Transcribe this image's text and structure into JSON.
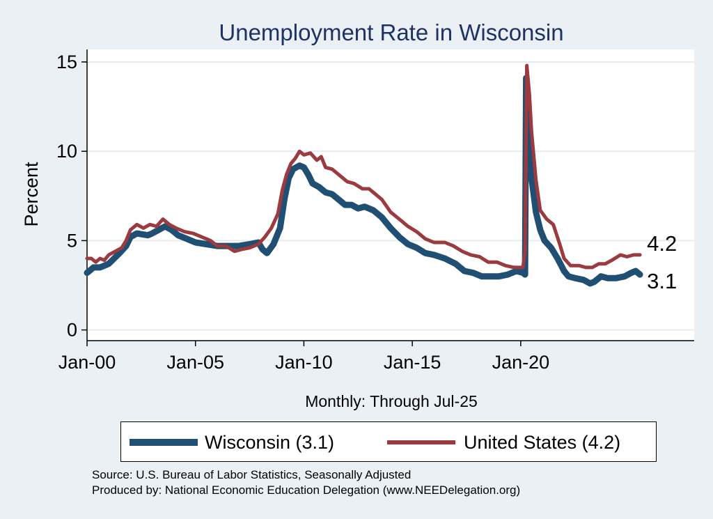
{
  "chart_data": {
    "type": "line",
    "title": "Unemployment Rate in Wisconsin",
    "xlabel": "Monthly: Through Jul-25",
    "ylabel": "Percent",
    "x_start": "2000-01",
    "x_end": "2025-07",
    "xlim": [
      2000.0,
      2028.0
    ],
    "ylim": [
      -0.6,
      15.7
    ],
    "yticks": [
      0,
      5,
      10,
      15
    ],
    "xticks": [
      {
        "label": "Jan-00",
        "value": 2000
      },
      {
        "label": "Jan-05",
        "value": 2005
      },
      {
        "label": "Jan-10",
        "value": 2010
      },
      {
        "label": "Jan-15",
        "value": 2015
      },
      {
        "label": "Jan-20",
        "value": 2020
      }
    ],
    "grid": true,
    "series": [
      {
        "name": "Wisconsin",
        "legend": "Wisconsin (3.1)",
        "color": "#1f4f73",
        "end_label": "3.1",
        "points": [
          [
            2000.0,
            3.2
          ],
          [
            2000.3,
            3.5
          ],
          [
            2000.6,
            3.5
          ],
          [
            2001.0,
            3.7
          ],
          [
            2001.5,
            4.3
          ],
          [
            2001.8,
            4.7
          ],
          [
            2002.0,
            5.2
          ],
          [
            2002.3,
            5.4
          ],
          [
            2002.8,
            5.3
          ],
          [
            2003.0,
            5.4
          ],
          [
            2003.3,
            5.6
          ],
          [
            2003.6,
            5.8
          ],
          [
            2003.9,
            5.6
          ],
          [
            2004.2,
            5.3
          ],
          [
            2004.6,
            5.1
          ],
          [
            2005.0,
            4.9
          ],
          [
            2005.5,
            4.8
          ],
          [
            2006.0,
            4.7
          ],
          [
            2006.5,
            4.7
          ],
          [
            2007.0,
            4.7
          ],
          [
            2007.5,
            4.8
          ],
          [
            2007.9,
            4.9
          ],
          [
            2008.1,
            4.5
          ],
          [
            2008.3,
            4.3
          ],
          [
            2008.6,
            4.8
          ],
          [
            2008.9,
            5.7
          ],
          [
            2009.1,
            7.3
          ],
          [
            2009.3,
            8.5
          ],
          [
            2009.5,
            9.0
          ],
          [
            2009.8,
            9.2
          ],
          [
            2010.0,
            9.1
          ],
          [
            2010.2,
            8.7
          ],
          [
            2010.4,
            8.2
          ],
          [
            2010.7,
            8.0
          ],
          [
            2011.0,
            7.7
          ],
          [
            2011.3,
            7.6
          ],
          [
            2011.6,
            7.3
          ],
          [
            2011.9,
            7.0
          ],
          [
            2012.2,
            7.0
          ],
          [
            2012.5,
            6.8
          ],
          [
            2012.8,
            6.9
          ],
          [
            2013.2,
            6.7
          ],
          [
            2013.6,
            6.3
          ],
          [
            2014.0,
            5.7
          ],
          [
            2014.4,
            5.2
          ],
          [
            2014.8,
            4.8
          ],
          [
            2015.2,
            4.6
          ],
          [
            2015.6,
            4.3
          ],
          [
            2016.0,
            4.2
          ],
          [
            2016.5,
            4.0
          ],
          [
            2017.0,
            3.7
          ],
          [
            2017.4,
            3.3
          ],
          [
            2017.8,
            3.2
          ],
          [
            2018.2,
            3.0
          ],
          [
            2018.6,
            3.0
          ],
          [
            2019.0,
            3.0
          ],
          [
            2019.4,
            3.1
          ],
          [
            2019.8,
            3.3
          ],
          [
            2020.1,
            3.2
          ],
          [
            2020.2,
            3.1
          ],
          [
            2020.25,
            14.1
          ],
          [
            2020.35,
            12.5
          ],
          [
            2020.5,
            8.5
          ],
          [
            2020.7,
            6.6
          ],
          [
            2020.9,
            5.6
          ],
          [
            2021.1,
            5.0
          ],
          [
            2021.4,
            4.6
          ],
          [
            2021.7,
            4.0
          ],
          [
            2022.0,
            3.3
          ],
          [
            2022.2,
            3.0
          ],
          [
            2022.5,
            2.9
          ],
          [
            2022.9,
            2.8
          ],
          [
            2023.2,
            2.6
          ],
          [
            2023.4,
            2.7
          ],
          [
            2023.7,
            3.0
          ],
          [
            2024.0,
            2.9
          ],
          [
            2024.4,
            2.9
          ],
          [
            2024.8,
            3.0
          ],
          [
            2025.1,
            3.2
          ],
          [
            2025.3,
            3.3
          ],
          [
            2025.5,
            3.1
          ]
        ]
      },
      {
        "name": "United States",
        "legend": "United States (4.2)",
        "color": "#9b3a3f",
        "end_label": "4.2",
        "points": [
          [
            2000.0,
            4.0
          ],
          [
            2000.2,
            4.0
          ],
          [
            2000.4,
            3.8
          ],
          [
            2000.6,
            4.0
          ],
          [
            2000.8,
            3.9
          ],
          [
            2001.0,
            4.2
          ],
          [
            2001.3,
            4.4
          ],
          [
            2001.6,
            4.6
          ],
          [
            2001.8,
            5.0
          ],
          [
            2002.0,
            5.6
          ],
          [
            2002.3,
            5.9
          ],
          [
            2002.6,
            5.7
          ],
          [
            2002.9,
            5.9
          ],
          [
            2003.2,
            5.8
          ],
          [
            2003.5,
            6.2
          ],
          [
            2003.8,
            5.9
          ],
          [
            2004.1,
            5.7
          ],
          [
            2004.5,
            5.5
          ],
          [
            2004.9,
            5.4
          ],
          [
            2005.3,
            5.2
          ],
          [
            2005.7,
            5.0
          ],
          [
            2006.0,
            4.7
          ],
          [
            2006.4,
            4.7
          ],
          [
            2006.8,
            4.4
          ],
          [
            2007.1,
            4.5
          ],
          [
            2007.5,
            4.6
          ],
          [
            2007.9,
            4.8
          ],
          [
            2008.2,
            5.2
          ],
          [
            2008.5,
            5.7
          ],
          [
            2008.8,
            6.5
          ],
          [
            2009.0,
            7.8
          ],
          [
            2009.2,
            8.7
          ],
          [
            2009.4,
            9.3
          ],
          [
            2009.6,
            9.6
          ],
          [
            2009.8,
            10.0
          ],
          [
            2010.0,
            9.8
          ],
          [
            2010.3,
            9.9
          ],
          [
            2010.6,
            9.5
          ],
          [
            2010.8,
            9.7
          ],
          [
            2011.0,
            9.1
          ],
          [
            2011.3,
            9.0
          ],
          [
            2011.6,
            8.7
          ],
          [
            2012.0,
            8.3
          ],
          [
            2012.3,
            8.2
          ],
          [
            2012.7,
            7.9
          ],
          [
            2013.0,
            7.9
          ],
          [
            2013.3,
            7.6
          ],
          [
            2013.6,
            7.3
          ],
          [
            2014.0,
            6.6
          ],
          [
            2014.4,
            6.2
          ],
          [
            2014.8,
            5.8
          ],
          [
            2015.2,
            5.5
          ],
          [
            2015.6,
            5.1
          ],
          [
            2016.0,
            4.9
          ],
          [
            2016.5,
            4.9
          ],
          [
            2016.9,
            4.7
          ],
          [
            2017.3,
            4.4
          ],
          [
            2017.7,
            4.2
          ],
          [
            2018.1,
            4.1
          ],
          [
            2018.5,
            3.8
          ],
          [
            2018.9,
            3.8
          ],
          [
            2019.3,
            3.6
          ],
          [
            2019.7,
            3.5
          ],
          [
            2020.1,
            3.5
          ],
          [
            2020.2,
            4.4
          ],
          [
            2020.28,
            14.8
          ],
          [
            2020.4,
            13.2
          ],
          [
            2020.5,
            11.1
          ],
          [
            2020.7,
            8.4
          ],
          [
            2020.9,
            6.7
          ],
          [
            2021.2,
            6.2
          ],
          [
            2021.5,
            5.9
          ],
          [
            2021.8,
            4.8
          ],
          [
            2022.0,
            4.0
          ],
          [
            2022.3,
            3.6
          ],
          [
            2022.7,
            3.6
          ],
          [
            2023.0,
            3.5
          ],
          [
            2023.3,
            3.5
          ],
          [
            2023.6,
            3.7
          ],
          [
            2023.9,
            3.7
          ],
          [
            2024.2,
            3.9
          ],
          [
            2024.6,
            4.2
          ],
          [
            2024.9,
            4.1
          ],
          [
            2025.2,
            4.2
          ],
          [
            2025.5,
            4.2
          ]
        ]
      }
    ]
  },
  "source_lines": [
    "Source: U.S. Bureau of Labor Statistics, Seasonally Adjusted",
    "Produced by: National Economic Education Delegation (www.NEEDelegation.org)"
  ],
  "colors": {
    "background": "#ebf0f5",
    "plot_background": "#ffffff",
    "title": "#1e3264"
  }
}
